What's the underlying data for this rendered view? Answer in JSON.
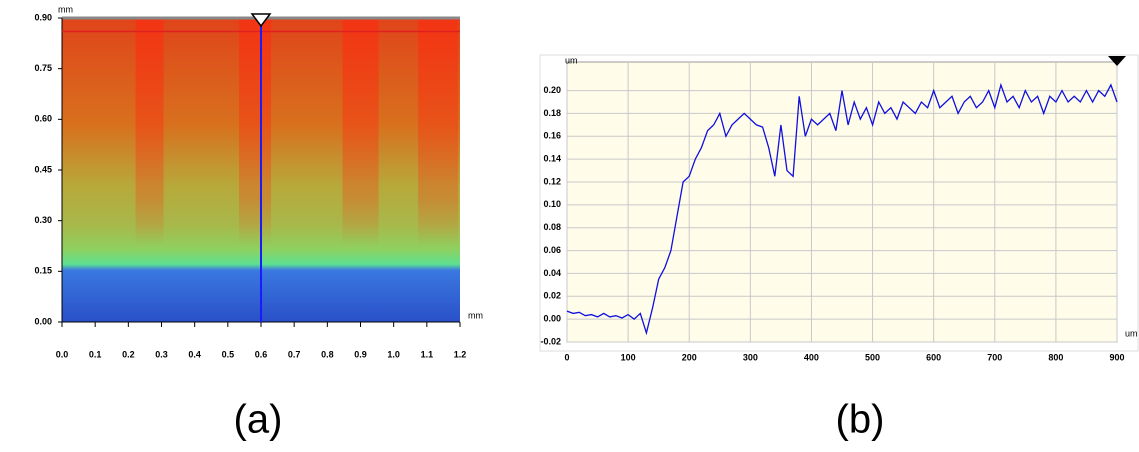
{
  "chart_data": [
    {
      "type": "heatmap",
      "caption": "(a)",
      "x_unit": "mm",
      "y_unit": "mm",
      "xlim": [
        0,
        1.2
      ],
      "ylim": [
        0,
        0.9
      ],
      "xticks": [
        {
          "value": 0,
          "label": "0.0"
        },
        0.1,
        0.2,
        0.3,
        0.4,
        0.5,
        0.6,
        0.7,
        0.8,
        0.9,
        {
          "value": 1,
          "label": "1.0"
        },
        1.1,
        1.2
      ],
      "yticks": [
        {
          "value": 0,
          "label": "0.00"
        },
        0.15,
        {
          "value": 0.3,
          "label": "0.30"
        },
        0.45,
        {
          "value": 0.6,
          "label": "0.60"
        },
        0.75,
        {
          "value": 0.9,
          "label": "0.90"
        }
      ],
      "cursor_x": 0.6,
      "cursor_y": 0.86,
      "cursor_x_color": "#1a1aff",
      "cursor_y_color": "#e02020"
    },
    {
      "type": "line",
      "caption": "(b)",
      "x_unit": "um",
      "y_unit": "um",
      "color": "#1010e0",
      "grid": true,
      "xlim": [
        0,
        900
      ],
      "ylim": [
        -0.02,
        0.225
      ],
      "xticks": [
        0,
        100,
        200,
        300,
        400,
        500,
        600,
        700,
        800,
        900
      ],
      "yticks": [
        -0.02,
        {
          "value": 0,
          "label": "0.00"
        },
        0.02,
        0.04,
        0.06,
        0.08,
        {
          "value": 0.1,
          "label": "0.10"
        },
        0.12,
        0.14,
        0.16,
        0.18,
        {
          "value": 0.2,
          "label": "0.20"
        }
      ],
      "x": [
        0,
        10,
        20,
        30,
        40,
        50,
        60,
        70,
        80,
        90,
        100,
        110,
        120,
        130,
        140,
        150,
        160,
        170,
        180,
        190,
        200,
        210,
        220,
        230,
        240,
        250,
        260,
        270,
        280,
        290,
        300,
        310,
        320,
        330,
        340,
        350,
        360,
        370,
        380,
        390,
        400,
        410,
        420,
        430,
        440,
        450,
        460,
        470,
        480,
        490,
        500,
        510,
        520,
        530,
        540,
        550,
        560,
        570,
        580,
        590,
        600,
        610,
        620,
        630,
        640,
        650,
        660,
        670,
        680,
        690,
        700,
        710,
        720,
        730,
        740,
        750,
        760,
        770,
        780,
        790,
        800,
        810,
        820,
        830,
        840,
        850,
        860,
        870,
        880,
        890,
        900
      ],
      "values": [
        0.007,
        0.005,
        0.006,
        0.003,
        0.004,
        0.002,
        0.005,
        0.002,
        0.003,
        0.001,
        0.004,
        0.0,
        0.005,
        -0.012,
        0.01,
        0.035,
        0.045,
        0.06,
        0.09,
        0.12,
        0.125,
        0.14,
        0.15,
        0.165,
        0.17,
        0.18,
        0.16,
        0.17,
        0.175,
        0.18,
        0.175,
        0.17,
        0.168,
        0.15,
        0.125,
        0.17,
        0.13,
        0.125,
        0.195,
        0.16,
        0.175,
        0.17,
        0.175,
        0.18,
        0.165,
        0.2,
        0.17,
        0.19,
        0.175,
        0.185,
        0.17,
        0.19,
        0.18,
        0.185,
        0.175,
        0.19,
        0.185,
        0.18,
        0.19,
        0.185,
        0.2,
        0.185,
        0.19,
        0.195,
        0.18,
        0.19,
        0.195,
        0.185,
        0.19,
        0.2,
        0.185,
        0.205,
        0.19,
        0.195,
        0.185,
        0.2,
        0.19,
        0.195,
        0.18,
        0.195,
        0.19,
        0.2,
        0.19,
        0.195,
        0.19,
        0.2,
        0.19,
        0.2,
        0.195,
        0.205,
        0.19
      ]
    }
  ]
}
